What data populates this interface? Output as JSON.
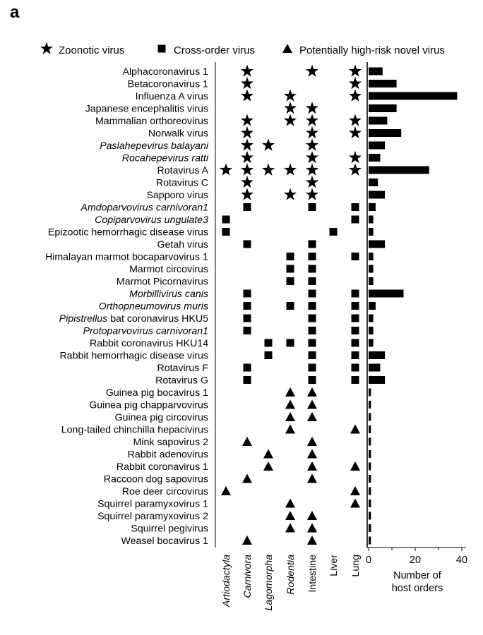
{
  "panel_label": "a",
  "legend": [
    {
      "symbol": "star",
      "label": "Zoonotic virus"
    },
    {
      "symbol": "square",
      "label": "Cross-order virus"
    },
    {
      "symbol": "triangle",
      "label": "Potentially high-risk novel virus"
    }
  ],
  "chart_data": {
    "type": "bar",
    "orientation": "horizontal",
    "xlabel": "Number of host orders",
    "xlim": [
      0,
      40
    ],
    "xticks": [
      "0",
      "20",
      "40"
    ],
    "columns": [
      "Artiodactyla",
      "Carnivora",
      "Lagomorpha",
      "Rodentia",
      "Intestine",
      "Liver",
      "Lung"
    ],
    "column_italic": [
      true,
      true,
      true,
      true,
      false,
      false,
      false
    ],
    "viruses": [
      {
        "name": "Alphacoronavirus 1",
        "italic": false,
        "marker": "star",
        "present": [
          0,
          1,
          0,
          0,
          1,
          0,
          1
        ],
        "host_orders": 6
      },
      {
        "name": "Betacoronavirus 1",
        "italic": false,
        "marker": "star",
        "present": [
          0,
          1,
          0,
          0,
          0,
          0,
          1
        ],
        "host_orders": 12
      },
      {
        "name": "Influenza A virus",
        "italic": false,
        "marker": "star",
        "present": [
          0,
          1,
          0,
          1,
          0,
          0,
          1
        ],
        "host_orders": 38
      },
      {
        "name": "Japanese encephalitis virus",
        "italic": false,
        "marker": "star",
        "present": [
          0,
          0,
          0,
          1,
          1,
          0,
          0
        ],
        "host_orders": 12
      },
      {
        "name": "Mammalian orthoreovirus",
        "italic": false,
        "marker": "star",
        "present": [
          0,
          1,
          0,
          1,
          1,
          0,
          1
        ],
        "host_orders": 8
      },
      {
        "name": "Norwalk virus",
        "italic": false,
        "marker": "star",
        "present": [
          0,
          1,
          0,
          0,
          1,
          0,
          1
        ],
        "host_orders": 14
      },
      {
        "name": "Paslahepevirus balayani",
        "italic": true,
        "marker": "star",
        "present": [
          0,
          1,
          1,
          0,
          1,
          0,
          0
        ],
        "host_orders": 7
      },
      {
        "name": "Rocahepevirus ratti",
        "italic": true,
        "marker": "star",
        "present": [
          0,
          1,
          0,
          0,
          1,
          0,
          1
        ],
        "host_orders": 5
      },
      {
        "name": "Rotavirus A",
        "italic": false,
        "marker": "star",
        "present": [
          1,
          1,
          1,
          1,
          1,
          0,
          1
        ],
        "host_orders": 26
      },
      {
        "name": "Rotavirus C",
        "italic": false,
        "marker": "star",
        "present": [
          0,
          1,
          0,
          0,
          1,
          0,
          0
        ],
        "host_orders": 4
      },
      {
        "name": "Sapporo virus",
        "italic": false,
        "marker": "star",
        "present": [
          0,
          1,
          0,
          1,
          1,
          0,
          0
        ],
        "host_orders": 7
      },
      {
        "name": "Amdoparvovirus carnivoran1",
        "italic": true,
        "marker": "square",
        "present": [
          0,
          1,
          0,
          0,
          1,
          0,
          1
        ],
        "host_orders": 3
      },
      {
        "name": "Copiparvovirus ungulate3",
        "italic": true,
        "marker": "square",
        "present": [
          1,
          0,
          0,
          0,
          0,
          0,
          1
        ],
        "host_orders": 2
      },
      {
        "name": "Epizootic hemorrhagic disease virus",
        "italic": false,
        "marker": "square",
        "present": [
          1,
          0,
          0,
          0,
          0,
          1,
          0
        ],
        "host_orders": 2
      },
      {
        "name": "Getah virus",
        "italic": false,
        "marker": "square",
        "present": [
          0,
          1,
          0,
          0,
          1,
          0,
          0
        ],
        "host_orders": 7
      },
      {
        "name": "Himalayan marmot bocaparvovirus 1",
        "italic": false,
        "marker": "square",
        "present": [
          0,
          0,
          0,
          1,
          1,
          0,
          1
        ],
        "host_orders": 2
      },
      {
        "name": "Marmot circovirus",
        "italic": false,
        "marker": "square",
        "present": [
          0,
          0,
          0,
          1,
          1,
          0,
          0
        ],
        "host_orders": 2
      },
      {
        "name": "Marmot Picornavirus",
        "italic": false,
        "marker": "square",
        "present": [
          0,
          0,
          0,
          1,
          1,
          0,
          0
        ],
        "host_orders": 2
      },
      {
        "name": "Morbillivirus canis",
        "italic": true,
        "marker": "square",
        "present": [
          0,
          1,
          0,
          0,
          1,
          0,
          1
        ],
        "host_orders": 15
      },
      {
        "name": "Orthopneumovirus muris",
        "italic": true,
        "marker": "square",
        "present": [
          0,
          1,
          0,
          1,
          1,
          0,
          1
        ],
        "host_orders": 3
      },
      {
        "name_parts": [
          {
            "text": "Pipistrellus",
            "italic": true
          },
          {
            "text": " bat coronavirus HKU5",
            "italic": false
          }
        ],
        "marker": "square",
        "present": [
          0,
          1,
          0,
          0,
          1,
          0,
          1
        ],
        "host_orders": 2
      },
      {
        "name": "Protoparvovirus carnivoran1",
        "italic": true,
        "marker": "square",
        "present": [
          0,
          1,
          0,
          0,
          1,
          0,
          1
        ],
        "host_orders": 2
      },
      {
        "name": "Rabbit coronavirus HKU14",
        "italic": false,
        "marker": "square",
        "present": [
          0,
          0,
          1,
          1,
          1,
          0,
          1
        ],
        "host_orders": 2
      },
      {
        "name": "Rabbit hemorrhagic disease virus",
        "italic": false,
        "marker": "square",
        "present": [
          0,
          0,
          1,
          0,
          1,
          0,
          1
        ],
        "host_orders": 7
      },
      {
        "name": "Rotavirus F",
        "italic": false,
        "marker": "square",
        "present": [
          0,
          1,
          0,
          0,
          1,
          0,
          1
        ],
        "host_orders": 5
      },
      {
        "name": "Rotavirus G",
        "italic": false,
        "marker": "square",
        "present": [
          0,
          1,
          0,
          0,
          1,
          0,
          1
        ],
        "host_orders": 7
      },
      {
        "name": "Guinea pig bocavirus 1",
        "italic": false,
        "marker": "triangle",
        "present": [
          0,
          0,
          0,
          1,
          1,
          0,
          0
        ],
        "host_orders": 1
      },
      {
        "name": "Guinea pig chapparvovirus",
        "italic": false,
        "marker": "triangle",
        "present": [
          0,
          0,
          0,
          1,
          1,
          0,
          0
        ],
        "host_orders": 1
      },
      {
        "name": "Guinea pig circovirus",
        "italic": false,
        "marker": "triangle",
        "present": [
          0,
          0,
          0,
          1,
          1,
          0,
          0
        ],
        "host_orders": 1
      },
      {
        "name": "Long-tailed chinchilla hepacivirus",
        "italic": false,
        "marker": "triangle",
        "present": [
          0,
          0,
          0,
          1,
          0,
          0,
          1
        ],
        "host_orders": 1
      },
      {
        "name": "Mink sapovirus 2",
        "italic": false,
        "marker": "triangle",
        "present": [
          0,
          1,
          0,
          0,
          1,
          0,
          0
        ],
        "host_orders": 1
      },
      {
        "name": "Rabbit adenovirus",
        "italic": false,
        "marker": "triangle",
        "present": [
          0,
          0,
          1,
          0,
          1,
          0,
          0
        ],
        "host_orders": 1
      },
      {
        "name": "Rabbit coronavirus 1",
        "italic": false,
        "marker": "triangle",
        "present": [
          0,
          0,
          1,
          0,
          1,
          0,
          1
        ],
        "host_orders": 1
      },
      {
        "name": "Raccoon dog sapovirus",
        "italic": false,
        "marker": "triangle",
        "present": [
          0,
          1,
          0,
          0,
          1,
          0,
          0
        ],
        "host_orders": 1
      },
      {
        "name": "Roe deer circovirus",
        "italic": false,
        "marker": "triangle",
        "present": [
          1,
          0,
          0,
          0,
          0,
          0,
          1
        ],
        "host_orders": 1
      },
      {
        "name": "Squirrel paramyxovirus 1",
        "italic": false,
        "marker": "triangle",
        "present": [
          0,
          0,
          0,
          1,
          0,
          0,
          1
        ],
        "host_orders": 1
      },
      {
        "name": "Squirrel paramyxovirus 2",
        "italic": false,
        "marker": "triangle",
        "present": [
          0,
          0,
          0,
          1,
          1,
          0,
          0
        ],
        "host_orders": 1
      },
      {
        "name": "Squirrel pegivirus",
        "italic": false,
        "marker": "triangle",
        "present": [
          0,
          0,
          0,
          1,
          1,
          0,
          0
        ],
        "host_orders": 1
      },
      {
        "name": "Weasel bocavirus 1",
        "italic": false,
        "marker": "triangle",
        "present": [
          0,
          1,
          0,
          0,
          1,
          0,
          0
        ],
        "host_orders": 1
      }
    ]
  }
}
